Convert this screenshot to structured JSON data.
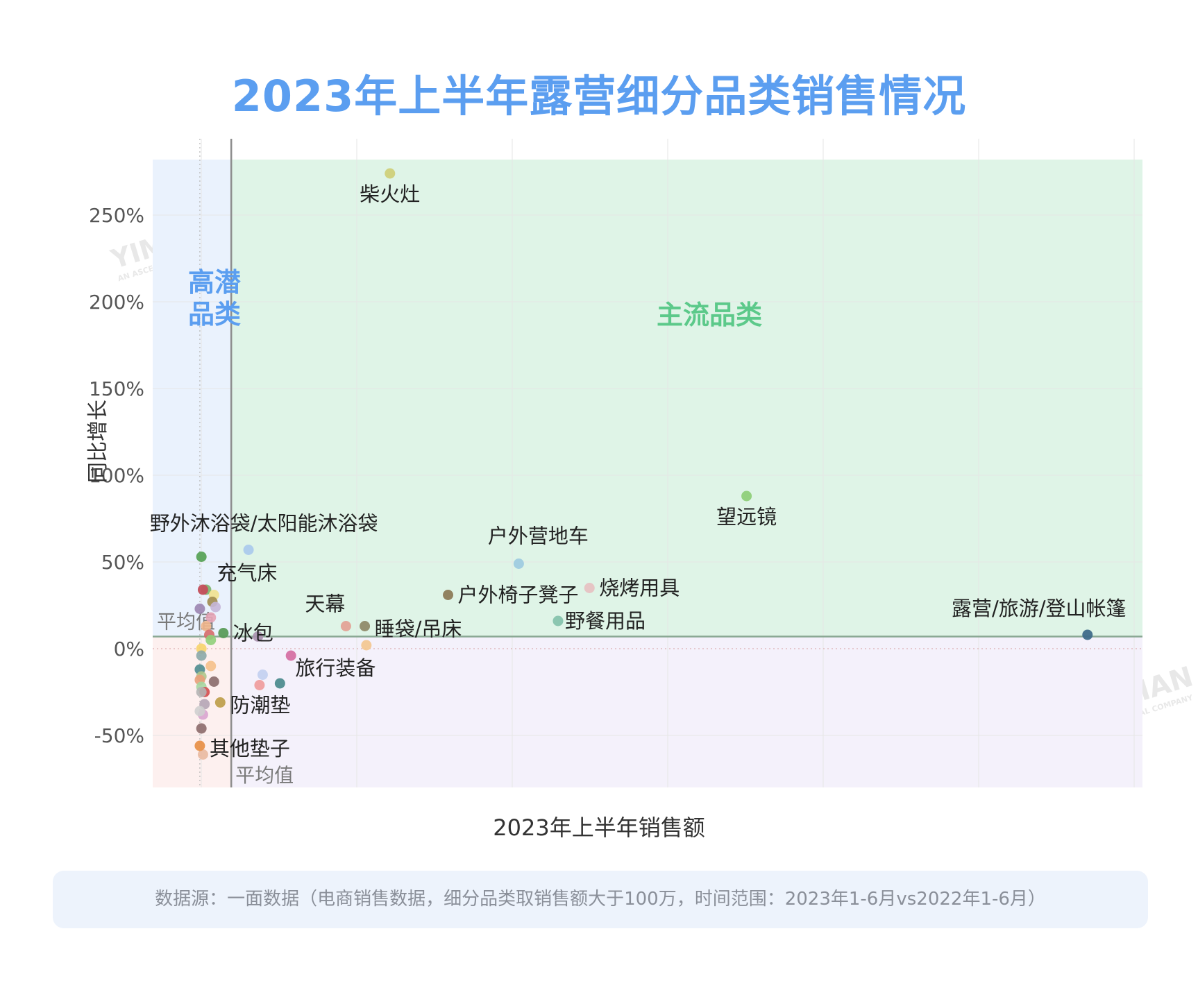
{
  "title": "2023年上半年露营细分品类销售情况",
  "x_axis_label": "2023年上半年销售额",
  "y_axis_label": "同比增长",
  "footer_note": "数据源：一面数据（电商销售数据，细分品类取销售额大于100万，时间范围：2023年1-6月vs2022年1-6月）",
  "colors": {
    "title": "#5b9ef0",
    "quadrant_high_potential_label": "#5b9ef0",
    "quadrant_mainstream_label": "#5cc98a",
    "quadrant_top_left_fill": "#eaf2fd",
    "quadrant_top_right_fill": "#dff4e7",
    "quadrant_bottom_left_fill": "#fdf0ef",
    "quadrant_bottom_right_fill": "#f4f1fb"
  },
  "quadrant_labels": {
    "top_left": "高潜\n品类",
    "top_right": "主流品类"
  },
  "average_labels": {
    "y_average": "平均值",
    "x_average": "平均值"
  },
  "watermark": {
    "brand": "YIMIAN",
    "tagline": "AN ASCENTIAL COMPANY"
  },
  "chart_data": {
    "type": "scatter",
    "xlabel": "2023年上半年销售额",
    "ylabel": "同比增长",
    "x_unit": "relative sales (no ticks shown)",
    "xlim": [
      -3,
      60
    ],
    "ylim": [
      -80,
      282
    ],
    "y_ticks": [
      -50,
      0,
      50,
      100,
      150,
      200,
      250
    ],
    "y_tick_labels": [
      "-50%",
      "0%",
      "50%",
      "100%",
      "150%",
      "200%",
      "250%"
    ],
    "x_average": 2.0,
    "y_average": 7,
    "grid": true,
    "legend": "none",
    "labeled_points": [
      {
        "label": "柴火灶",
        "x": 12.1,
        "y": 274,
        "color": "#cfd07a"
      },
      {
        "label": "望远镜",
        "x": 34.8,
        "y": 88,
        "color": "#8fcf7a"
      },
      {
        "label": "户外营地车",
        "x": 20.3,
        "y": 49,
        "color": "#9fcbe0"
      },
      {
        "label": "烧烤用具",
        "x": 24.8,
        "y": 35,
        "color": "#e6c2c3"
      },
      {
        "label": "户外椅子凳子",
        "x": 15.8,
        "y": 31,
        "color": "#8c7b58"
      },
      {
        "label": "野餐用品",
        "x": 22.8,
        "y": 16,
        "color": "#86c3ad"
      },
      {
        "label": "露营/旅游/登山帐篷",
        "x": 56.5,
        "y": 8,
        "color": "#3f6b8a"
      },
      {
        "label": "睡袋/吊床",
        "x": 10.5,
        "y": 13,
        "color": "#8f8a6a"
      },
      {
        "label": "天幕",
        "x": 9.3,
        "y": 13,
        "color": "#e3a397"
      },
      {
        "label": "旅行装备",
        "x": 5.1,
        "y": -20,
        "color": "#4e8c8f"
      },
      {
        "label": "野外沐浴袋/太阳能沐浴袋",
        "x": 0.1,
        "y": 53,
        "color": "#5aa35a"
      },
      {
        "label": "充气床",
        "x": 0.2,
        "y": 34,
        "color": "#c44e5b"
      },
      {
        "label": "冰包",
        "x": 1.5,
        "y": 9,
        "color": "#5a9c5a"
      },
      {
        "label": "防潮垫",
        "x": 1.3,
        "y": -31,
        "color": "#c0a04e"
      },
      {
        "label": "其他垫子",
        "x": 0.0,
        "y": -56,
        "color": "#e8914a"
      }
    ],
    "unlabeled_points": [
      {
        "x": 3.1,
        "y": 57,
        "color": "#a9c9ec"
      },
      {
        "x": 3.7,
        "y": 7,
        "color": "#a890ad"
      },
      {
        "x": 10.6,
        "y": 2,
        "color": "#f3c58e"
      },
      {
        "x": 5.8,
        "y": -4,
        "color": "#d46aa0"
      },
      {
        "x": 4.0,
        "y": -15,
        "color": "#c2cff0"
      },
      {
        "x": 3.8,
        "y": -21,
        "color": "#f09a9a"
      },
      {
        "x": 0.4,
        "y": 34,
        "color": "#7ab36a"
      },
      {
        "x": 0.9,
        "y": 31,
        "color": "#f1e18e"
      },
      {
        "x": 0.8,
        "y": 27,
        "color": "#a08b4e"
      },
      {
        "x": 1.0,
        "y": 24,
        "color": "#c5b6d8"
      },
      {
        "x": 0.0,
        "y": 23,
        "color": "#9b84b0"
      },
      {
        "x": 0.7,
        "y": 18,
        "color": "#e6a3b5"
      },
      {
        "x": 0.4,
        "y": 13,
        "color": "#efb58a"
      },
      {
        "x": 0.6,
        "y": 8,
        "color": "#d66a6a"
      },
      {
        "x": 0.7,
        "y": 5,
        "color": "#8fcf7a"
      },
      {
        "x": 0.1,
        "y": 0,
        "color": "#f7d36a"
      },
      {
        "x": 0.1,
        "y": -4,
        "color": "#8ba9a8"
      },
      {
        "x": 0.7,
        "y": -10,
        "color": "#f5c08a"
      },
      {
        "x": 0.0,
        "y": -12,
        "color": "#4e8c8f"
      },
      {
        "x": 0.1,
        "y": -16,
        "color": "#b0c58b"
      },
      {
        "x": 0.0,
        "y": -18,
        "color": "#e8a07a"
      },
      {
        "x": 0.9,
        "y": -19,
        "color": "#8a6a6a"
      },
      {
        "x": 0.1,
        "y": -22,
        "color": "#a5d6a0"
      },
      {
        "x": 0.3,
        "y": -25,
        "color": "#d44b4b"
      },
      {
        "x": 0.1,
        "y": -25,
        "color": "#b4b4b4"
      },
      {
        "x": 0.3,
        "y": -32,
        "color": "#b5a5b5"
      },
      {
        "x": 0.2,
        "y": -38,
        "color": "#d9a4cf"
      },
      {
        "x": 0.0,
        "y": -36,
        "color": "#cfcfcf"
      },
      {
        "x": 0.1,
        "y": -46,
        "color": "#8c6a6a"
      },
      {
        "x": 0.2,
        "y": -61,
        "color": "#e9b9a0"
      }
    ]
  }
}
